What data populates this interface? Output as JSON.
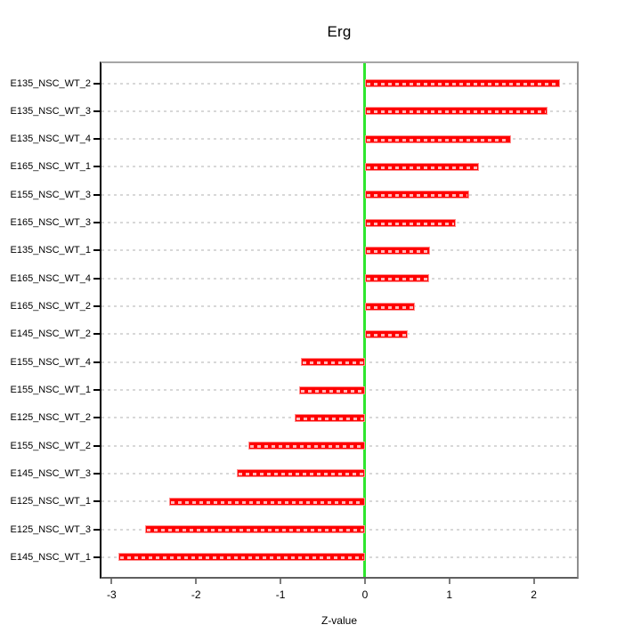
{
  "title": "Erg",
  "axis": {
    "xlabel": "Z-value",
    "x_tick_labels": [
      "-3",
      "-2",
      "-1",
      "0",
      "1",
      "2"
    ]
  },
  "chart_data": {
    "type": "bar",
    "orientation": "horizontal",
    "title": "Erg",
    "xlabel": "Z-value",
    "ylabel": "",
    "legend": "none",
    "grid": "dashed-horizontal-per-category",
    "categories": [
      "E135_NSC_WT_2",
      "E135_NSC_WT_3",
      "E135_NSC_WT_4",
      "E165_NSC_WT_1",
      "E155_NSC_WT_3",
      "E165_NSC_WT_3",
      "E135_NSC_WT_1",
      "E165_NSC_WT_4",
      "E165_NSC_WT_2",
      "E145_NSC_WT_2",
      "E155_NSC_WT_4",
      "E155_NSC_WT_1",
      "E125_NSC_WT_2",
      "E155_NSC_WT_2",
      "E145_NSC_WT_3",
      "E125_NSC_WT_1",
      "E125_NSC_WT_3",
      "E145_NSC_WT_1"
    ],
    "values": [
      2.31,
      2.16,
      1.73,
      1.35,
      1.23,
      1.08,
      0.77,
      0.76,
      0.59,
      0.51,
      -0.76,
      -0.78,
      -0.83,
      -1.38,
      -1.52,
      -2.32,
      -2.6,
      -2.92
    ],
    "xlim": [
      -3.12,
      2.51
    ],
    "x_ticks": [
      -3,
      -2,
      -1,
      0,
      1,
      2
    ],
    "zero_line": 0,
    "colors": {
      "bar_fill": "#ff0000",
      "bar_border": "#ff9090",
      "zero_line": "#2ee62e",
      "gridline": "#d8d8d8",
      "box_border": "#8f8f8f",
      "axis_line": "#000000"
    }
  }
}
